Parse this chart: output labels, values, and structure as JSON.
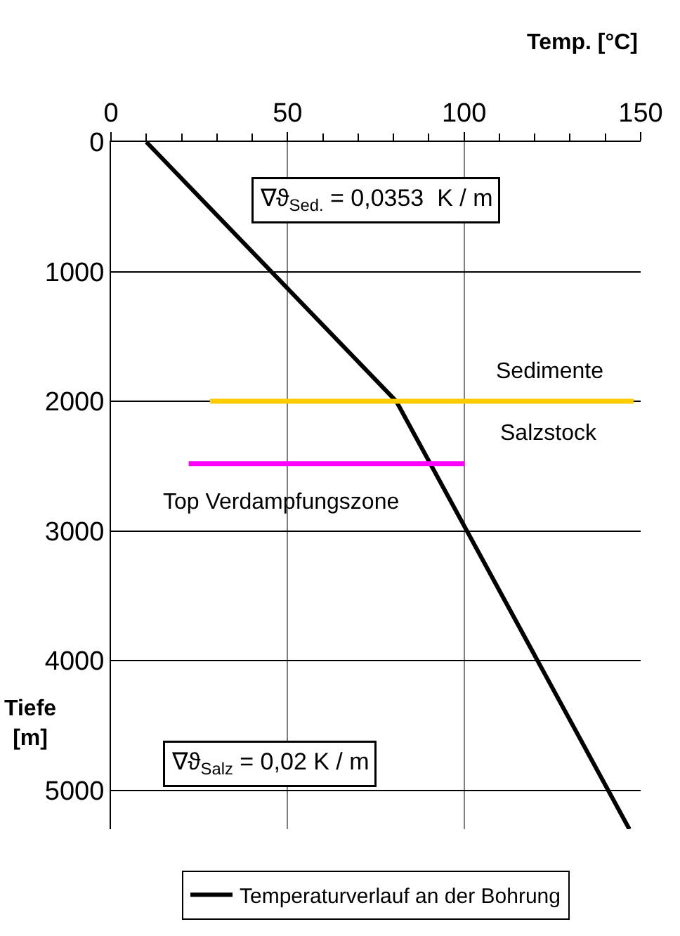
{
  "chart_data": {
    "type": "line",
    "xlabel": "Temp. [°C]",
    "ylabel": "Tiefe [m]",
    "xlim": [
      0,
      150
    ],
    "xticks": [
      0,
      50,
      100,
      150
    ],
    "ylim": [
      5300,
      0
    ],
    "yticks": [
      0,
      1000,
      2000,
      3000,
      4000,
      5000
    ],
    "grid": true,
    "legend": "bottom",
    "marker": "none",
    "line_style": "solid",
    "series": [
      {
        "name": "Temperaturverlauf an der Bohrung",
        "color": "#000000",
        "x": [
          10,
          80.8,
          146.8
        ],
        "values": [
          0,
          2000,
          5300
        ]
      },
      {
        "color": "#ffcc00",
        "x": [
          28,
          148
        ],
        "values": [
          2000,
          2000
        ]
      },
      {
        "color": "#ff00ff",
        "x": [
          22,
          100
        ],
        "values": [
          2480,
          2480
        ]
      }
    ],
    "annotations": [
      "∇ϑ$_{Sed.}$ = 0,0353  K / m",
      "∇ϑ$_{Salz}$ = 0,02 K / m",
      "Sedimente",
      "Salzstock",
      "Top Verdampfungszone"
    ]
  }
}
